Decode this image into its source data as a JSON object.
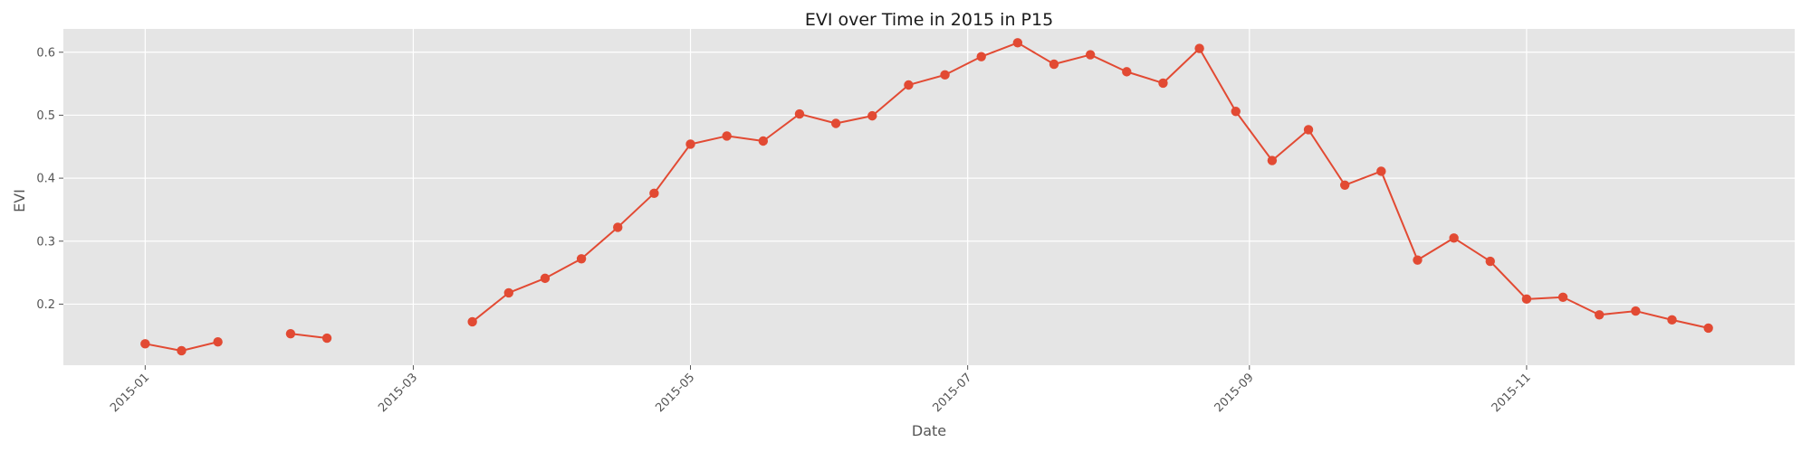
{
  "chart_data": {
    "type": "line",
    "title": "EVI over Time in 2015 in P15",
    "xlabel": "Date",
    "ylabel": "EVI",
    "x_ticks": [
      "2015-01-01",
      "2015-03-01",
      "2015-05-01",
      "2015-07-01",
      "2015-09-01",
      "2015-11-01"
    ],
    "x_tick_labels": [
      "2015-01",
      "2015-03",
      "2015-05",
      "2015-07",
      "2015-09",
      "2015-11"
    ],
    "y_ticks": [
      0.2,
      0.3,
      0.4,
      0.5,
      0.6
    ],
    "y_tick_labels": [
      "0.2",
      "0.3",
      "0.4",
      "0.5",
      "0.6"
    ],
    "xlim": [
      "2014-12-14",
      "2015-12-30"
    ],
    "ylim": [
      0.103,
      0.637
    ],
    "grid": true,
    "series": [
      {
        "color": "#E24A33",
        "marker": "circle",
        "x": [
          "2015-01-01",
          "2015-01-09",
          "2015-01-17",
          "2015-01-25",
          "2015-02-02",
          "2015-02-10",
          "2015-02-18",
          "2015-02-26",
          "2015-03-06",
          "2015-03-14",
          "2015-03-22",
          "2015-03-30",
          "2015-04-07",
          "2015-04-15",
          "2015-04-23",
          "2015-05-01",
          "2015-05-09",
          "2015-05-17",
          "2015-05-25",
          "2015-06-02",
          "2015-06-10",
          "2015-06-18",
          "2015-06-26",
          "2015-07-04",
          "2015-07-12",
          "2015-07-20",
          "2015-07-28",
          "2015-08-05",
          "2015-08-13",
          "2015-08-21",
          "2015-08-29",
          "2015-09-06",
          "2015-09-14",
          "2015-09-22",
          "2015-09-30",
          "2015-10-08",
          "2015-10-16",
          "2015-10-24",
          "2015-11-01",
          "2015-11-09",
          "2015-11-17",
          "2015-11-25",
          "2015-12-03",
          "2015-12-11"
        ],
        "y": [
          0.137,
          0.126,
          0.14,
          null,
          0.153,
          0.146,
          null,
          null,
          null,
          0.172,
          0.218,
          0.241,
          0.272,
          0.322,
          0.376,
          0.454,
          0.467,
          0.459,
          0.502,
          0.487,
          0.499,
          0.548,
          0.564,
          0.593,
          0.615,
          0.581,
          0.596,
          0.569,
          0.551,
          0.606,
          0.506,
          0.428,
          0.477,
          0.389,
          0.411,
          0.27,
          0.305,
          0.268,
          0.208,
          0.211,
          0.183,
          0.189,
          0.175,
          0.162
        ]
      }
    ]
  }
}
